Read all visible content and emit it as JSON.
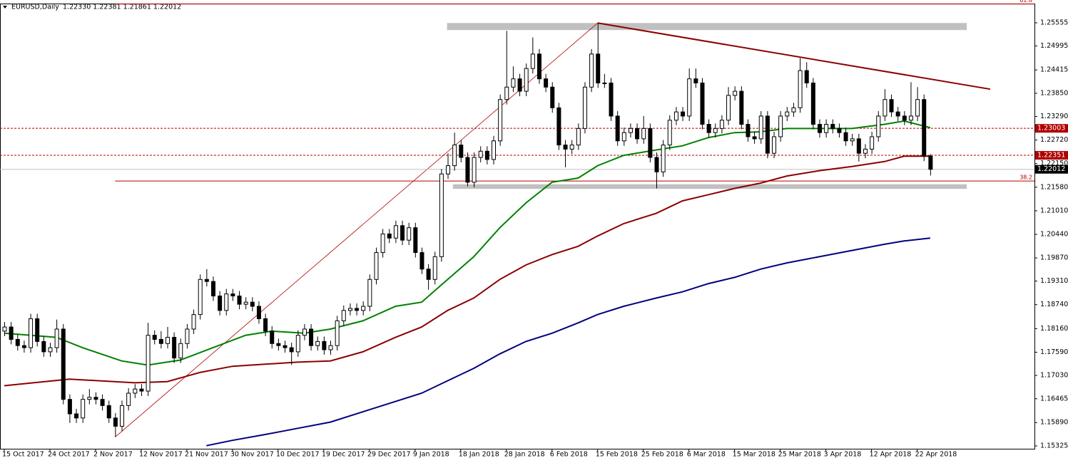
{
  "chart_data": {
    "type": "candlestick",
    "title": "EURUSD,Daily",
    "subtitle": "1.22330 1.22381 1.21861 1.22012",
    "categories": [
      "15 Oct 2017",
      null,
      null,
      null,
      null,
      null,
      null,
      "24 Oct 2017",
      null,
      null,
      null,
      null,
      null,
      null,
      "2 Nov 2017",
      null,
      null,
      null,
      null,
      null,
      null,
      "12 Nov 2017",
      null,
      null,
      null,
      null,
      null,
      null,
      "21 Nov 2017",
      null,
      null,
      null,
      null,
      null,
      null,
      "30 Nov 2017",
      null,
      null,
      null,
      null,
      null,
      null,
      "10 Dec 2017",
      null,
      null,
      null,
      null,
      null,
      null,
      "19 Dec 2017",
      null,
      null,
      null,
      null,
      null,
      null,
      "29 Dec 2017",
      null,
      null,
      null,
      null,
      null,
      null,
      "9 Jan 2018",
      null,
      null,
      null,
      null,
      null,
      null,
      "18 Jan 2018",
      null,
      null,
      null,
      null,
      null,
      null,
      "28 Jan 2018",
      null,
      null,
      null,
      null,
      null,
      null,
      "6 Feb 2018",
      null,
      null,
      null,
      null,
      null,
      null,
      "15 Feb 2018",
      null,
      null,
      null,
      null,
      null,
      null,
      "25 Feb 2018",
      null,
      null,
      null,
      null,
      null,
      null,
      "6 Mar 2018",
      null,
      null,
      null,
      null,
      null,
      null,
      "15 Mar 2018",
      null,
      null,
      null,
      null,
      null,
      null,
      "25 Mar 2018",
      null,
      null,
      null,
      null,
      null,
      null,
      "3 Apr 2018",
      null,
      null,
      null,
      null,
      null,
      null,
      "12 Apr 2018",
      null,
      null,
      null,
      null,
      null,
      null,
      "22 Apr 2018",
      null,
      null
    ],
    "ohlc": [
      [
        1.181,
        1.1832,
        1.1798,
        1.182
      ],
      [
        1.182,
        1.1832,
        1.1778,
        1.179
      ],
      [
        1.179,
        1.1802,
        1.1763,
        1.1775
      ],
      [
        1.1775,
        1.1787,
        1.1758,
        1.177
      ],
      [
        1.177,
        1.1852,
        1.1758,
        1.184
      ],
      [
        1.184,
        1.1852,
        1.1773,
        1.1785
      ],
      [
        1.1785,
        1.1797,
        1.1748,
        1.176
      ],
      [
        1.176,
        1.1782,
        1.1748,
        1.177
      ],
      [
        1.177,
        1.1838,
        1.1758,
        1.1815
      ],
      [
        1.1815,
        1.1827,
        1.1633,
        1.1645
      ],
      [
        1.1645,
        1.1657,
        1.1588,
        1.161
      ],
      [
        1.161,
        1.1622,
        1.1588,
        1.16
      ],
      [
        1.16,
        1.1657,
        1.1588,
        1.1645
      ],
      [
        1.1645,
        1.167,
        1.1633,
        1.165
      ],
      [
        1.165,
        1.1662,
        1.1633,
        1.1645
      ],
      [
        1.1645,
        1.1657,
        1.1618,
        1.163
      ],
      [
        1.163,
        1.1642,
        1.1588,
        1.16
      ],
      [
        1.16,
        1.1612,
        1.1554,
        1.158
      ],
      [
        1.158,
        1.1642,
        1.1568,
        1.163
      ],
      [
        1.163,
        1.1672,
        1.1618,
        1.166
      ],
      [
        1.166,
        1.1682,
        1.1648,
        1.167
      ],
      [
        1.167,
        1.1682,
        1.1653,
        1.1665
      ],
      [
        1.1665,
        1.183,
        1.1653,
        1.18
      ],
      [
        1.18,
        1.1812,
        1.1778,
        1.179
      ],
      [
        1.179,
        1.181,
        1.1768,
        1.178
      ],
      [
        1.178,
        1.182,
        1.1768,
        1.1795
      ],
      [
        1.1795,
        1.1807,
        1.1733,
        1.1745
      ],
      [
        1.1745,
        1.1792,
        1.1733,
        1.178
      ],
      [
        1.178,
        1.1827,
        1.1768,
        1.1815
      ],
      [
        1.1815,
        1.1862,
        1.1803,
        1.185
      ],
      [
        1.185,
        1.1947,
        1.1838,
        1.1935
      ],
      [
        1.1935,
        1.196,
        1.1918,
        1.193
      ],
      [
        1.193,
        1.1942,
        1.1883,
        1.1895
      ],
      [
        1.1895,
        1.1907,
        1.1848,
        1.186
      ],
      [
        1.186,
        1.1912,
        1.1848,
        1.19
      ],
      [
        1.19,
        1.1912,
        1.1883,
        1.1895
      ],
      [
        1.1895,
        1.1907,
        1.1863,
        1.1875
      ],
      [
        1.1875,
        1.1892,
        1.1863,
        1.188
      ],
      [
        1.188,
        1.1892,
        1.1858,
        1.187
      ],
      [
        1.187,
        1.1882,
        1.1828,
        1.184
      ],
      [
        1.184,
        1.1852,
        1.1798,
        1.181
      ],
      [
        1.181,
        1.1822,
        1.1768,
        1.178
      ],
      [
        1.178,
        1.1792,
        1.1763,
        1.1775
      ],
      [
        1.1775,
        1.1787,
        1.1758,
        1.177
      ],
      [
        1.177,
        1.1782,
        1.1728,
        1.176
      ],
      [
        1.176,
        1.1812,
        1.1748,
        1.18
      ],
      [
        1.18,
        1.1827,
        1.1788,
        1.1815
      ],
      [
        1.1815,
        1.1827,
        1.1763,
        1.1775
      ],
      [
        1.1775,
        1.1797,
        1.1763,
        1.1785
      ],
      [
        1.1785,
        1.1797,
        1.1753,
        1.1765
      ],
      [
        1.1765,
        1.1787,
        1.1753,
        1.1775
      ],
      [
        1.1775,
        1.1847,
        1.1763,
        1.1835
      ],
      [
        1.1835,
        1.1872,
        1.1823,
        1.186
      ],
      [
        1.186,
        1.1877,
        1.1848,
        1.1865
      ],
      [
        1.1865,
        1.1877,
        1.1848,
        1.186
      ],
      [
        1.186,
        1.1882,
        1.1848,
        1.187
      ],
      [
        1.187,
        1.1947,
        1.1858,
        1.1935
      ],
      [
        1.1935,
        1.2012,
        1.1923,
        1.2
      ],
      [
        1.2,
        1.2057,
        1.1988,
        1.2045
      ],
      [
        1.2045,
        1.2057,
        1.2023,
        1.2035
      ],
      [
        1.2035,
        1.2077,
        1.2023,
        1.2065
      ],
      [
        1.2065,
        1.2077,
        1.2018,
        1.203
      ],
      [
        1.203,
        1.2072,
        1.2018,
        1.206
      ],
      [
        1.206,
        1.2072,
        1.1988,
        1.2
      ],
      [
        1.2,
        1.2012,
        1.1948,
        1.196
      ],
      [
        1.196,
        1.1972,
        1.191,
        1.1935
      ],
      [
        1.1935,
        1.2002,
        1.1923,
        1.199
      ],
      [
        1.199,
        1.2202,
        1.1978,
        1.219
      ],
      [
        1.219,
        1.224,
        1.2178,
        1.221
      ],
      [
        1.221,
        1.229,
        1.2198,
        1.226
      ],
      [
        1.226,
        1.2272,
        1.2218,
        1.223
      ],
      [
        1.223,
        1.2242,
        1.216,
        1.217
      ],
      [
        1.217,
        1.2242,
        1.2158,
        1.223
      ],
      [
        1.223,
        1.2257,
        1.2218,
        1.2245
      ],
      [
        1.2245,
        1.2257,
        1.2213,
        1.2225
      ],
      [
        1.2225,
        1.2282,
        1.2213,
        1.227
      ],
      [
        1.227,
        1.2382,
        1.2258,
        1.237
      ],
      [
        1.237,
        1.2536,
        1.2358,
        1.24
      ],
      [
        1.24,
        1.245,
        1.2388,
        1.242
      ],
      [
        1.242,
        1.2432,
        1.2378,
        1.239
      ],
      [
        1.239,
        1.2457,
        1.2378,
        1.2445
      ],
      [
        1.2445,
        1.252,
        1.2433,
        1.248
      ],
      [
        1.248,
        1.2492,
        1.2408,
        1.242
      ],
      [
        1.242,
        1.2432,
        1.2388,
        1.24
      ],
      [
        1.24,
        1.2412,
        1.2338,
        1.235
      ],
      [
        1.235,
        1.2362,
        1.2248,
        1.226
      ],
      [
        1.226,
        1.2272,
        1.2206,
        1.225
      ],
      [
        1.225,
        1.2272,
        1.2238,
        1.226
      ],
      [
        1.226,
        1.2312,
        1.2248,
        1.23
      ],
      [
        1.23,
        1.2412,
        1.2288,
        1.24
      ],
      [
        1.24,
        1.2492,
        1.2388,
        1.248
      ],
      [
        1.248,
        1.2555,
        1.2398,
        1.241
      ],
      [
        1.241,
        1.2432,
        1.2398,
        1.241
      ],
      [
        1.241,
        1.2422,
        1.2318,
        1.233
      ],
      [
        1.233,
        1.2342,
        1.2258,
        1.227
      ],
      [
        1.227,
        1.2302,
        1.2258,
        1.229
      ],
      [
        1.229,
        1.2312,
        1.2278,
        1.23
      ],
      [
        1.23,
        1.2312,
        1.2263,
        1.2275
      ],
      [
        1.2275,
        1.233,
        1.2263,
        1.23
      ],
      [
        1.23,
        1.2312,
        1.2218,
        1.223
      ],
      [
        1.223,
        1.2242,
        1.2155,
        1.2195
      ],
      [
        1.2195,
        1.2272,
        1.2183,
        1.226
      ],
      [
        1.226,
        1.2332,
        1.2248,
        1.232
      ],
      [
        1.232,
        1.2352,
        1.2308,
        1.234
      ],
      [
        1.234,
        1.2352,
        1.2318,
        1.233
      ],
      [
        1.233,
        1.2445,
        1.2318,
        1.242
      ],
      [
        1.242,
        1.2445,
        1.2398,
        1.241
      ],
      [
        1.241,
        1.2422,
        1.2298,
        1.231
      ],
      [
        1.231,
        1.2322,
        1.2278,
        1.229
      ],
      [
        1.229,
        1.2312,
        1.2278,
        1.23
      ],
      [
        1.23,
        1.2332,
        1.2288,
        1.232
      ],
      [
        1.232,
        1.24,
        1.2308,
        1.238
      ],
      [
        1.238,
        1.2402,
        1.2368,
        1.239
      ],
      [
        1.239,
        1.2402,
        1.2298,
        1.231
      ],
      [
        1.231,
        1.2322,
        1.2268,
        1.228
      ],
      [
        1.228,
        1.2292,
        1.2263,
        1.2275
      ],
      [
        1.2275,
        1.2342,
        1.2263,
        1.233
      ],
      [
        1.233,
        1.2342,
        1.2228,
        1.224
      ],
      [
        1.224,
        1.2292,
        1.2228,
        1.228
      ],
      [
        1.228,
        1.2342,
        1.2268,
        1.233
      ],
      [
        1.233,
        1.2352,
        1.2318,
        1.234
      ],
      [
        1.234,
        1.2362,
        1.2328,
        1.235
      ],
      [
        1.235,
        1.247,
        1.2338,
        1.244
      ],
      [
        1.244,
        1.246,
        1.2398,
        1.241
      ],
      [
        1.241,
        1.2422,
        1.2298,
        1.231
      ],
      [
        1.231,
        1.2322,
        1.2278,
        1.229
      ],
      [
        1.229,
        1.2322,
        1.2278,
        1.231
      ],
      [
        1.231,
        1.2322,
        1.2288,
        1.23
      ],
      [
        1.23,
        1.2312,
        1.2278,
        1.229
      ],
      [
        1.229,
        1.2302,
        1.2258,
        1.227
      ],
      [
        1.227,
        1.2287,
        1.2258,
        1.2275
      ],
      [
        1.2275,
        1.2287,
        1.222,
        1.224
      ],
      [
        1.224,
        1.2262,
        1.2228,
        1.225
      ],
      [
        1.225,
        1.2292,
        1.2238,
        1.228
      ],
      [
        1.228,
        1.2342,
        1.2268,
        1.233
      ],
      [
        1.233,
        1.2395,
        1.2318,
        1.237
      ],
      [
        1.237,
        1.2382,
        1.2328,
        1.234
      ],
      [
        1.234,
        1.2352,
        1.2318,
        1.233
      ],
      [
        1.233,
        1.2342,
        1.2308,
        1.232
      ],
      [
        1.232,
        1.2412,
        1.2308,
        1.233
      ],
      [
        1.233,
        1.24,
        1.2318,
        1.237
      ],
      [
        1.237,
        1.2382,
        1.2221,
        1.2233
      ],
      [
        1.2233,
        1.22381,
        1.21861,
        1.22012
      ]
    ],
    "up_color": "#ffffff",
    "down_color": "#000000",
    "series": [
      {
        "color": "#008000",
        "x": [
          0,
          8,
          12,
          18,
          22,
          27,
          32,
          37,
          41,
          46,
          50,
          55,
          60,
          64,
          68,
          72,
          76,
          80,
          84,
          88,
          91,
          95,
          100,
          104,
          108,
          112,
          116,
          120,
          125,
          130,
          135,
          138,
          142
        ],
        "values": [
          1.1805,
          1.1795,
          1.177,
          1.1738,
          1.1728,
          1.174,
          1.177,
          1.18,
          1.181,
          1.1805,
          1.1815,
          1.1835,
          1.187,
          1.188,
          1.1935,
          1.199,
          1.206,
          1.212,
          1.217,
          1.218,
          1.221,
          1.2235,
          1.2248,
          1.2258,
          1.2278,
          1.229,
          1.2292,
          1.23,
          1.23,
          1.23,
          1.231,
          1.2318,
          1.2302
        ]
      },
      {
        "color": "#8b0000",
        "x": [
          0,
          10,
          20,
          25,
          30,
          35,
          40,
          45,
          50,
          55,
          60,
          64,
          68,
          72,
          76,
          80,
          84,
          88,
          91,
          95,
          100,
          104,
          108,
          112,
          116,
          120,
          125,
          130,
          135,
          138,
          142
        ],
        "values": [
          1.1678,
          1.1694,
          1.1685,
          1.1688,
          1.171,
          1.1725,
          1.173,
          1.1735,
          1.1738,
          1.176,
          1.1795,
          1.182,
          1.186,
          1.189,
          1.1935,
          1.197,
          1.1995,
          1.2015,
          1.204,
          1.207,
          1.2095,
          1.2125,
          1.214,
          1.2155,
          1.2168,
          1.2185,
          1.2198,
          1.2208,
          1.222,
          1.2233,
          1.2233
        ]
      },
      {
        "color": "#000080",
        "x": [
          31,
          35,
          40,
          45,
          50,
          55,
          60,
          64,
          68,
          72,
          76,
          80,
          84,
          88,
          91,
          95,
          100,
          104,
          108,
          112,
          116,
          120,
          125,
          130,
          135,
          138,
          142
        ],
        "values": [
          1.1533,
          1.1546,
          1.156,
          1.1575,
          1.159,
          1.1615,
          1.164,
          1.166,
          1.169,
          1.172,
          1.1755,
          1.1785,
          1.1805,
          1.183,
          1.185,
          1.187,
          1.189,
          1.1905,
          1.1925,
          1.194,
          1.196,
          1.1975,
          1.199,
          1.2005,
          1.202,
          1.2028,
          1.2035
        ]
      }
    ],
    "levels": [
      1.23003,
      1.22351
    ],
    "level_color": "#b00000",
    "fib": {
      "x": [
        17,
        91
      ],
      "y": [
        1.1554,
        1.2555
      ],
      "color": "#b00000",
      "levels": [
        {
          "value": 1.2173,
          "label": "38.2"
        },
        {
          "value": 1.2601,
          "label": "61.8"
        }
      ]
    },
    "trendline": {
      "x": [
        91,
        151.2
      ],
      "y": [
        1.2555,
        1.2395
      ],
      "color": "#8b0000"
    },
    "zones": [
      {
        "x": [
          67.9,
          147.6
        ],
        "y": [
          1.2555,
          1.2538
        ]
      },
      {
        "x": [
          68.8,
          147.6
        ],
        "y": [
          1.2165,
          1.2154
        ]
      }
    ],
    "zone_color": "#c0c0c0",
    "ylim": [
      1.15256,
      1.2602
    ],
    "yticks": [
      1.25555,
      1.24995,
      1.24415,
      {
        "value": 1.2385,
        "label": "1.23850"
      },
      {
        "value": 1.2329,
        "label": "1.23290"
      },
      {
        "value": 1.2272,
        "label": "1.22720"
      },
      {
        "value": 1.2215,
        "label": "1.22150"
      },
      {
        "value": 1.2158,
        "label": "1.21580"
      },
      {
        "value": 1.2101,
        "label": "1.21010"
      },
      {
        "value": 1.2044,
        "label": "1.20440"
      },
      {
        "value": 1.1987,
        "label": "1.19870"
      },
      {
        "value": 1.1931,
        "label": "1.19310"
      },
      {
        "value": 1.1874,
        "label": "1.18740"
      },
      {
        "value": 1.1816,
        "label": "1.18160"
      },
      {
        "value": 1.1759,
        "label": "1.17590"
      },
      {
        "value": 1.1703,
        "label": "1.17030"
      },
      1.16465,
      {
        "value": 1.1589,
        "label": "1.15890"
      },
      1.15325
    ]
  }
}
